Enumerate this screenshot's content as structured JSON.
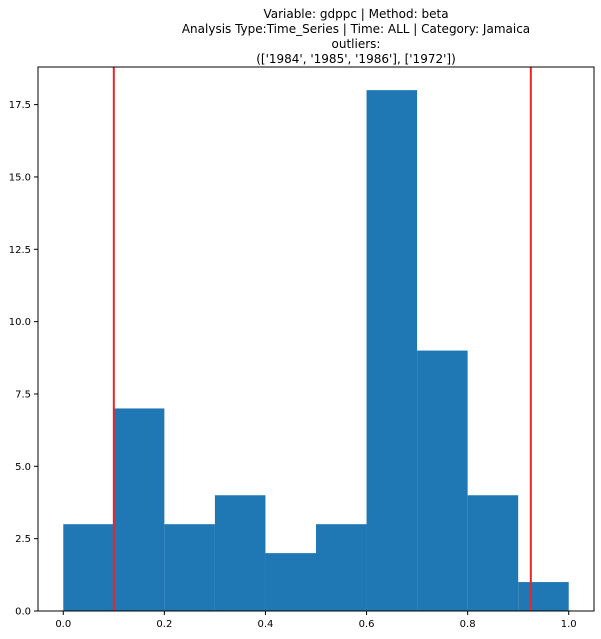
{
  "chart_data": {
    "type": "bar",
    "title_lines": [
      "Variable: gdppc | Method: beta",
      "Analysis Type:Time_Series | Time: ALL | Category: Jamaica",
      "outliers:",
      "(['1984', '1985', '1986'], ['1972'])"
    ],
    "bin_edges": [
      0.0,
      0.1,
      0.2,
      0.3,
      0.4,
      0.5,
      0.6,
      0.7,
      0.8,
      0.9,
      1.0
    ],
    "values": [
      3,
      7,
      3,
      4,
      2,
      3,
      18,
      9,
      4,
      1
    ],
    "bar_color": "#1f77b4",
    "thresholds": [
      0.1,
      0.925
    ],
    "threshold_color": "#e8262a",
    "xlim": [
      -0.05,
      1.05
    ],
    "ylim": [
      0,
      18.8
    ],
    "x_ticks": [
      0.0,
      0.2,
      0.4,
      0.6,
      0.8,
      1.0
    ],
    "x_tick_labels": [
      "0.0",
      "0.2",
      "0.4",
      "0.6",
      "0.8",
      "1.0"
    ],
    "y_ticks": [
      0.0,
      2.5,
      5.0,
      7.5,
      10.0,
      12.5,
      15.0,
      17.5
    ],
    "y_tick_labels": [
      "0.0",
      "2.5",
      "5.0",
      "7.5",
      "10.0",
      "12.5",
      "15.0",
      "17.5"
    ],
    "grid": false,
    "legend": "none"
  }
}
